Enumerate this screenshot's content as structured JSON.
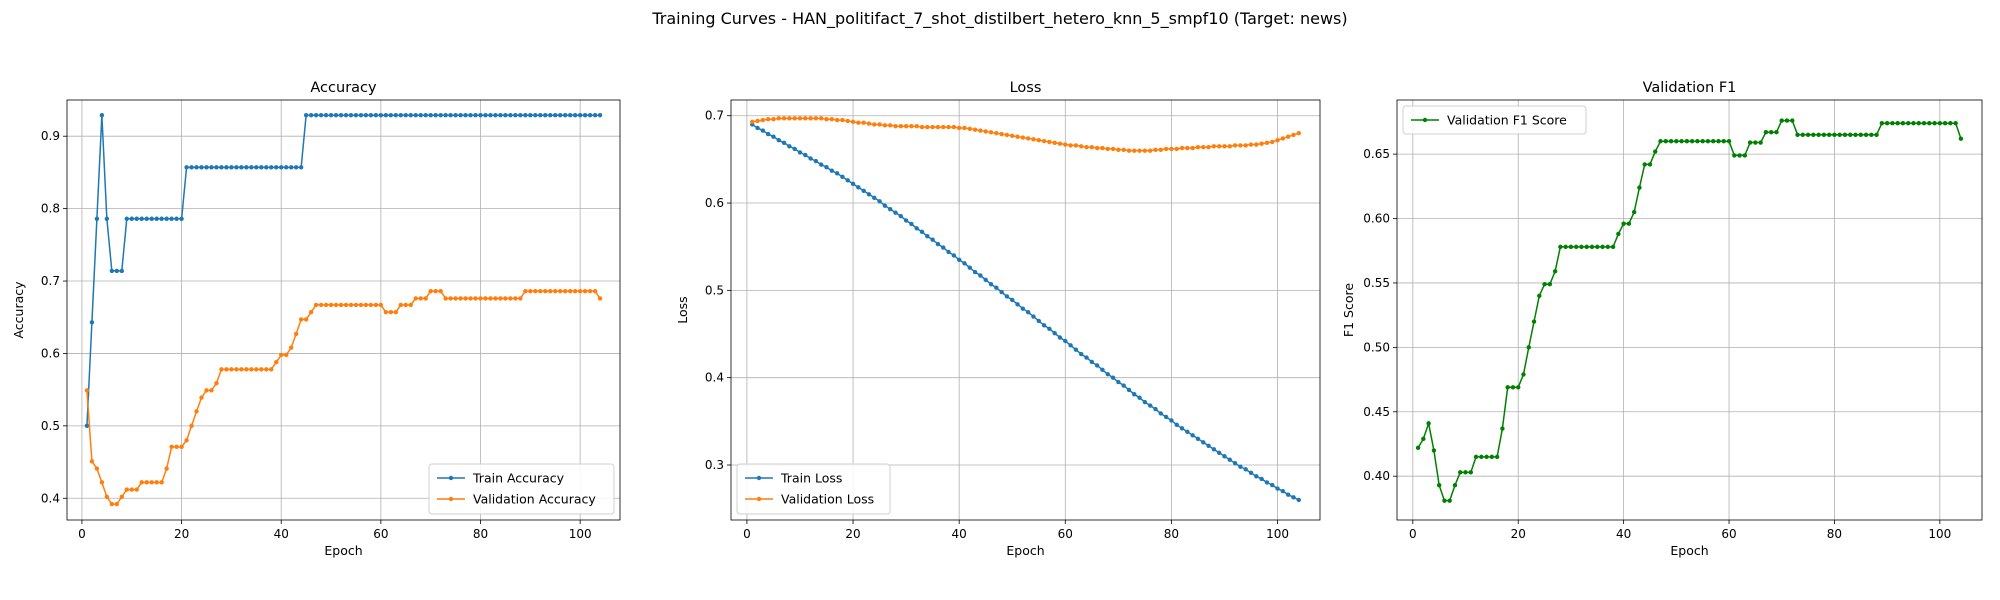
{
  "figure": {
    "suptitle": "Training Curves - HAN_politifact_7_shot_distilbert_hetero_knn_5_smpf10 (Target: news)"
  },
  "colors": {
    "blue": "#1f77b4",
    "orange": "#ff7f0e",
    "green": "#008000",
    "grid": "#b0b0b0"
  },
  "chart_data": [
    {
      "type": "line",
      "title": "Accuracy",
      "xlabel": "Epoch",
      "ylabel": "Accuracy",
      "xlim": [
        -3,
        108
      ],
      "ylim": [
        0.37,
        0.95
      ],
      "xticks": [
        0,
        20,
        40,
        60,
        80,
        100
      ],
      "yticks": [
        0.4,
        0.5,
        0.6,
        0.7,
        0.8,
        0.9
      ],
      "ytick_format": 1,
      "grid": true,
      "legend_loc": "lower-right",
      "x_start": 1,
      "series": [
        {
          "name": "Train Accuracy",
          "color": "#1f77b4",
          "marker": "dot",
          "values": [
            0.5,
            0.643,
            0.786,
            0.929,
            0.786,
            0.714,
            0.714,
            0.714,
            0.786,
            0.786,
            0.786,
            0.786,
            0.786,
            0.786,
            0.786,
            0.786,
            0.786,
            0.786,
            0.786,
            0.786,
            0.857,
            0.857,
            0.857,
            0.857,
            0.857,
            0.857,
            0.857,
            0.857,
            0.857,
            0.857,
            0.857,
            0.857,
            0.857,
            0.857,
            0.857,
            0.857,
            0.857,
            0.857,
            0.857,
            0.857,
            0.857,
            0.857,
            0.857,
            0.857,
            0.929,
            0.929,
            0.929,
            0.929,
            0.929,
            0.929,
            0.929,
            0.929,
            0.929,
            0.929,
            0.929,
            0.929,
            0.929,
            0.929,
            0.929,
            0.929,
            0.929,
            0.929,
            0.929,
            0.929,
            0.929,
            0.929,
            0.929,
            0.929,
            0.929,
            0.929,
            0.929,
            0.929,
            0.929,
            0.929,
            0.929,
            0.929,
            0.929,
            0.929,
            0.929,
            0.929,
            0.929,
            0.929,
            0.929,
            0.929,
            0.929,
            0.929,
            0.929,
            0.929,
            0.929,
            0.929,
            0.929,
            0.929,
            0.929,
            0.929,
            0.929,
            0.929,
            0.929,
            0.929,
            0.929,
            0.929,
            0.929,
            0.929,
            0.929,
            0.929
          ]
        },
        {
          "name": "Validation Accuracy",
          "color": "#ff7f0e",
          "marker": "dot",
          "values": [
            0.549,
            0.451,
            0.441,
            0.422,
            0.402,
            0.392,
            0.392,
            0.402,
            0.412,
            0.412,
            0.412,
            0.422,
            0.422,
            0.422,
            0.422,
            0.422,
            0.441,
            0.471,
            0.471,
            0.471,
            0.48,
            0.5,
            0.52,
            0.539,
            0.549,
            0.549,
            0.559,
            0.578,
            0.578,
            0.578,
            0.578,
            0.578,
            0.578,
            0.578,
            0.578,
            0.578,
            0.578,
            0.578,
            0.588,
            0.598,
            0.598,
            0.608,
            0.627,
            0.647,
            0.647,
            0.657,
            0.667,
            0.667,
            0.667,
            0.667,
            0.667,
            0.667,
            0.667,
            0.667,
            0.667,
            0.667,
            0.667,
            0.667,
            0.667,
            0.667,
            0.657,
            0.657,
            0.657,
            0.667,
            0.667,
            0.667,
            0.676,
            0.676,
            0.676,
            0.686,
            0.686,
            0.686,
            0.676,
            0.676,
            0.676,
            0.676,
            0.676,
            0.676,
            0.676,
            0.676,
            0.676,
            0.676,
            0.676,
            0.676,
            0.676,
            0.676,
            0.676,
            0.676,
            0.686,
            0.686,
            0.686,
            0.686,
            0.686,
            0.686,
            0.686,
            0.686,
            0.686,
            0.686,
            0.686,
            0.686,
            0.686,
            0.686,
            0.686,
            0.676
          ]
        }
      ]
    },
    {
      "type": "line",
      "title": "Loss",
      "xlabel": "Epoch",
      "ylabel": "Loss",
      "xlim": [
        -3,
        108
      ],
      "ylim": [
        0.237,
        0.718
      ],
      "xticks": [
        0,
        20,
        40,
        60,
        80,
        100
      ],
      "yticks": [
        0.3,
        0.4,
        0.5,
        0.6,
        0.7
      ],
      "ytick_format": 1,
      "grid": true,
      "legend_loc": "lower-left",
      "x_start": 1,
      "series": [
        {
          "name": "Train Loss",
          "color": "#1f77b4",
          "marker": "dot",
          "values": [
            0.69,
            0.686,
            0.683,
            0.679,
            0.676,
            0.672,
            0.669,
            0.665,
            0.662,
            0.658,
            0.655,
            0.651,
            0.648,
            0.644,
            0.641,
            0.637,
            0.634,
            0.63,
            0.626,
            0.622,
            0.618,
            0.614,
            0.61,
            0.606,
            0.602,
            0.597,
            0.593,
            0.589,
            0.585,
            0.58,
            0.576,
            0.571,
            0.567,
            0.562,
            0.558,
            0.553,
            0.549,
            0.544,
            0.54,
            0.535,
            0.531,
            0.526,
            0.521,
            0.517,
            0.512,
            0.507,
            0.503,
            0.498,
            0.493,
            0.489,
            0.484,
            0.479,
            0.475,
            0.47,
            0.465,
            0.46,
            0.456,
            0.451,
            0.446,
            0.442,
            0.437,
            0.432,
            0.427,
            0.423,
            0.418,
            0.414,
            0.409,
            0.404,
            0.4,
            0.395,
            0.391,
            0.386,
            0.381,
            0.377,
            0.372,
            0.368,
            0.364,
            0.359,
            0.355,
            0.351,
            0.346,
            0.342,
            0.338,
            0.334,
            0.33,
            0.326,
            0.322,
            0.318,
            0.314,
            0.31,
            0.306,
            0.302,
            0.298,
            0.295,
            0.291,
            0.287,
            0.284,
            0.28,
            0.277,
            0.273,
            0.27,
            0.266,
            0.263,
            0.26
          ]
        },
        {
          "name": "Validation Loss",
          "color": "#ff7f0e",
          "marker": "dot",
          "values": [
            0.693,
            0.694,
            0.695,
            0.696,
            0.696,
            0.697,
            0.697,
            0.697,
            0.697,
            0.697,
            0.697,
            0.697,
            0.697,
            0.697,
            0.696,
            0.696,
            0.695,
            0.695,
            0.694,
            0.693,
            0.692,
            0.692,
            0.691,
            0.69,
            0.69,
            0.689,
            0.689,
            0.688,
            0.688,
            0.688,
            0.688,
            0.688,
            0.687,
            0.687,
            0.687,
            0.687,
            0.687,
            0.687,
            0.687,
            0.686,
            0.686,
            0.685,
            0.684,
            0.683,
            0.682,
            0.681,
            0.68,
            0.679,
            0.678,
            0.677,
            0.676,
            0.675,
            0.674,
            0.673,
            0.672,
            0.671,
            0.67,
            0.669,
            0.668,
            0.667,
            0.666,
            0.666,
            0.665,
            0.664,
            0.664,
            0.663,
            0.663,
            0.662,
            0.662,
            0.661,
            0.661,
            0.66,
            0.66,
            0.66,
            0.66,
            0.66,
            0.661,
            0.661,
            0.662,
            0.662,
            0.662,
            0.663,
            0.663,
            0.663,
            0.664,
            0.664,
            0.664,
            0.665,
            0.665,
            0.665,
            0.665,
            0.666,
            0.666,
            0.666,
            0.667,
            0.667,
            0.668,
            0.669,
            0.67,
            0.672,
            0.674,
            0.676,
            0.678,
            0.68
          ]
        }
      ]
    },
    {
      "type": "line",
      "title": "Validation F1",
      "xlabel": "Epoch",
      "ylabel": "F1 Score",
      "xlim": [
        -3,
        108
      ],
      "ylim": [
        0.366,
        0.692
      ],
      "xticks": [
        0,
        20,
        40,
        60,
        80,
        100
      ],
      "yticks": [
        0.4,
        0.45,
        0.5,
        0.55,
        0.6,
        0.65
      ],
      "ytick_format": 2,
      "grid": true,
      "legend_loc": "upper-left",
      "x_start": 1,
      "series": [
        {
          "name": "Validation F1 Score",
          "color": "#008000",
          "marker": "dot",
          "values": [
            0.422,
            0.429,
            0.441,
            0.42,
            0.393,
            0.381,
            0.381,
            0.393,
            0.403,
            0.403,
            0.403,
            0.415,
            0.415,
            0.415,
            0.415,
            0.415,
            0.437,
            0.469,
            0.469,
            0.469,
            0.479,
            0.5,
            0.52,
            0.54,
            0.549,
            0.549,
            0.559,
            0.578,
            0.578,
            0.578,
            0.578,
            0.578,
            0.578,
            0.578,
            0.578,
            0.578,
            0.578,
            0.578,
            0.588,
            0.596,
            0.596,
            0.605,
            0.624,
            0.642,
            0.642,
            0.652,
            0.66,
            0.66,
            0.66,
            0.66,
            0.66,
            0.66,
            0.66,
            0.66,
            0.66,
            0.66,
            0.66,
            0.66,
            0.66,
            0.66,
            0.649,
            0.649,
            0.649,
            0.659,
            0.659,
            0.659,
            0.667,
            0.667,
            0.667,
            0.676,
            0.676,
            0.676,
            0.665,
            0.665,
            0.665,
            0.665,
            0.665,
            0.665,
            0.665,
            0.665,
            0.665,
            0.665,
            0.665,
            0.665,
            0.665,
            0.665,
            0.665,
            0.665,
            0.674,
            0.674,
            0.674,
            0.674,
            0.674,
            0.674,
            0.674,
            0.674,
            0.674,
            0.674,
            0.674,
            0.674,
            0.674,
            0.674,
            0.674,
            0.662
          ]
        }
      ]
    }
  ]
}
